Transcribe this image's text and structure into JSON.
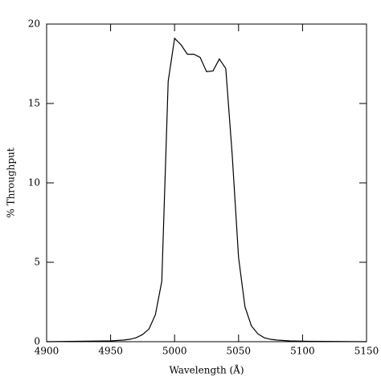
{
  "chart_data": {
    "type": "line",
    "xlabel": "Wavelength (Å)",
    "ylabel": "% Throughput",
    "x": [
      4900,
      4950,
      4960,
      4965,
      4970,
      4975,
      4980,
      4985,
      4990,
      4995,
      5000,
      5005,
      5010,
      5015,
      5020,
      5025,
      5030,
      5035,
      5040,
      5045,
      5050,
      5055,
      5060,
      5065,
      5070,
      5075,
      5080,
      5090,
      5100,
      5150
    ],
    "series": [
      {
        "color": "#000000",
        "values": [
          0,
          0.05,
          0.1,
          0.15,
          0.25,
          0.45,
          0.8,
          1.7,
          3.8,
          16.4,
          19.1,
          18.7,
          18.1,
          18.1,
          17.9,
          17.0,
          17.05,
          17.8,
          17.2,
          11.8,
          5.3,
          2.2,
          1.0,
          0.5,
          0.25,
          0.15,
          0.1,
          0.05,
          0.03,
          0
        ]
      }
    ],
    "xlim": [
      4900,
      5150
    ],
    "xticks": [
      4900,
      4950,
      5000,
      5050,
      5100,
      5150
    ],
    "ylim": [
      0,
      20
    ],
    "yticks": [
      0,
      5,
      10,
      15,
      20
    ]
  }
}
